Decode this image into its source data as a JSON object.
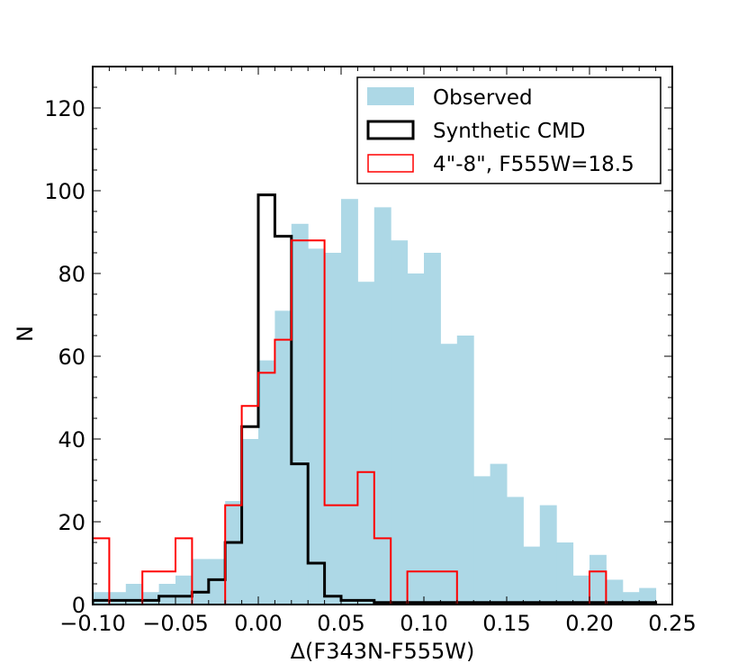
{
  "chart_data": {
    "type": "histogram",
    "xlabel": "Δ(F343N-F555W)",
    "ylabel": "N",
    "xlim": [
      -0.1,
      0.25
    ],
    "ylim": [
      0,
      130
    ],
    "grid": false,
    "legend_position": "top-right",
    "x_ticks": [
      {
        "value": -0.1,
        "label": "−0.10"
      },
      {
        "value": -0.05,
        "label": "−0.05"
      },
      {
        "value": 0.0,
        "label": "0.00"
      },
      {
        "value": 0.05,
        "label": "0.05"
      },
      {
        "value": 0.1,
        "label": "0.10"
      },
      {
        "value": 0.15,
        "label": "0.15"
      },
      {
        "value": 0.2,
        "label": "0.20"
      },
      {
        "value": 0.25,
        "label": "0.25"
      }
    ],
    "y_ticks": [
      {
        "value": 0,
        "label": "0"
      },
      {
        "value": 20,
        "label": "20"
      },
      {
        "value": 40,
        "label": "40"
      },
      {
        "value": 60,
        "label": "60"
      },
      {
        "value": 80,
        "label": "80"
      },
      {
        "value": 100,
        "label": "100"
      },
      {
        "value": 120,
        "label": "120"
      }
    ],
    "series": [
      {
        "name": "Observed",
        "style": "filled",
        "color": "#add8e6",
        "bin_start": -0.1,
        "bin_width": 0.01,
        "values": [
          3,
          3,
          5,
          3,
          5,
          7,
          11,
          11,
          25,
          40,
          59,
          71,
          92,
          86,
          85,
          98,
          78,
          96,
          88,
          80,
          85,
          63,
          65,
          31,
          34,
          26,
          14,
          24,
          15,
          7,
          12,
          6,
          3,
          4
        ]
      },
      {
        "name": "Synthetic CMD",
        "style": "step",
        "color": "#000000",
        "line_width": 3,
        "bin_start": -0.1,
        "bin_width": 0.01,
        "values": [
          1,
          1,
          1,
          1,
          2,
          2,
          3,
          6,
          15,
          43,
          99,
          89,
          34,
          10,
          2,
          1,
          1,
          0.5,
          0.5,
          0.5,
          0.5,
          0.5,
          0.5,
          0.5,
          0.5,
          0.5,
          0.5,
          0.5,
          0.5,
          0.5,
          0.5,
          0.5,
          0.5,
          0.5
        ]
      },
      {
        "name": "4\"-8\", F555W=18.5",
        "style": "step",
        "color": "#ff0000",
        "line_width": 2,
        "bin_start": -0.1,
        "bin_width": 0.01,
        "values": [
          16,
          0,
          0,
          8,
          8,
          16,
          0,
          0,
          24,
          48,
          56,
          64,
          88,
          88,
          24,
          24,
          32,
          16,
          0,
          8,
          8,
          8,
          0,
          0,
          0,
          0,
          0,
          0,
          0,
          0,
          8,
          0,
          0,
          0
        ]
      }
    ]
  }
}
